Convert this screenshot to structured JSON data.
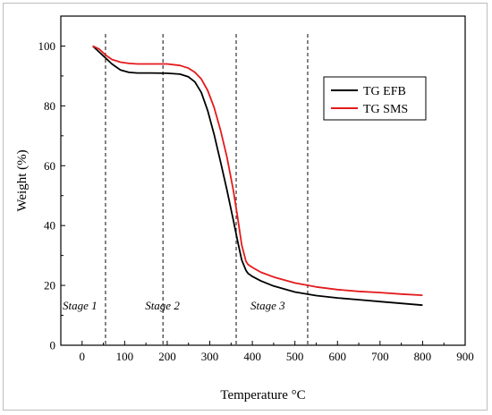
{
  "chart_data": {
    "type": "line",
    "title": "",
    "xlabel": "Temperature °C",
    "ylabel": "Weight (%)",
    "xlim": [
      -50,
      900
    ],
    "ylim": [
      0,
      110
    ],
    "xticks": [
      0,
      100,
      200,
      300,
      400,
      500,
      600,
      700,
      800,
      900
    ],
    "yticks": [
      0,
      20,
      40,
      60,
      80,
      100
    ],
    "grid": false,
    "legend_position": "top-right",
    "series": [
      {
        "name": "TG EFB",
        "color": "#000000",
        "x": [
          25,
          40,
          55,
          70,
          90,
          110,
          130,
          160,
          200,
          230,
          250,
          265,
          280,
          295,
          310,
          325,
          340,
          355,
          365,
          375,
          385,
          390,
          400,
          420,
          450,
          500,
          550,
          600,
          650,
          700,
          750,
          800
        ],
        "y": [
          100,
          98,
          96,
          94,
          92,
          91.2,
          91,
          91,
          90.9,
          90.6,
          89.7,
          88,
          84.5,
          78.5,
          70.5,
          61.5,
          52,
          42,
          35,
          28.5,
          25,
          24,
          23,
          21.5,
          19.8,
          17.8,
          16.6,
          15.8,
          15.2,
          14.6,
          14,
          13.4
        ]
      },
      {
        "name": "TG SMS",
        "color": "#e41a1c",
        "x": [
          25,
          40,
          55,
          70,
          90,
          110,
          130,
          160,
          200,
          230,
          250,
          265,
          280,
          295,
          310,
          325,
          340,
          355,
          365,
          375,
          385,
          390,
          400,
          420,
          450,
          500,
          550,
          600,
          650,
          700,
          750,
          800
        ],
        "y": [
          100,
          99,
          97,
          95.5,
          94.6,
          94.2,
          94,
          94,
          94,
          93.5,
          92.6,
          91.2,
          89,
          85.2,
          79.5,
          72,
          63,
          52,
          43,
          33.5,
          28,
          27,
          26,
          24.4,
          22.8,
          20.8,
          19.5,
          18.6,
          18,
          17.6,
          17.1,
          16.7
        ]
      }
    ],
    "vlines": [
      {
        "x": 55,
        "label": "Stage 1"
      },
      {
        "x": 190,
        "label": "Stage 2"
      },
      {
        "x": 362,
        "label": "Stage 3"
      },
      {
        "x": 530,
        "label": ""
      }
    ],
    "stage_label_y": 12
  }
}
